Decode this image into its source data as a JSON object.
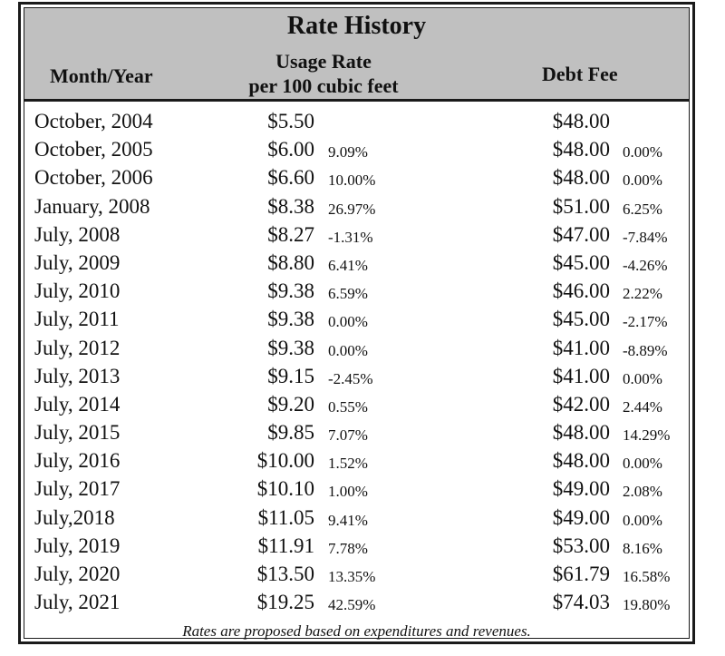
{
  "table": {
    "title": "Rate History",
    "headers": {
      "month_year": "Month/Year",
      "usage_rate_line1": "Usage Rate",
      "usage_rate_line2": "per 100 cubic feet",
      "debt_fee": "Debt Fee"
    },
    "rows": [
      {
        "month": "October, 2004",
        "usage": "$5.50",
        "usage_pct": "",
        "debt": "$48.00",
        "debt_pct": ""
      },
      {
        "month": "October, 2005",
        "usage": "$6.00",
        "usage_pct": "9.09%",
        "debt": "$48.00",
        "debt_pct": "0.00%"
      },
      {
        "month": "October, 2006",
        "usage": "$6.60",
        "usage_pct": "10.00%",
        "debt": "$48.00",
        "debt_pct": "0.00%"
      },
      {
        "month": "January, 2008",
        "usage": "$8.38",
        "usage_pct": "26.97%",
        "debt": "$51.00",
        "debt_pct": "6.25%"
      },
      {
        "month": "July, 2008",
        "usage": "$8.27",
        "usage_pct": "-1.31%",
        "debt": "$47.00",
        "debt_pct": "-7.84%"
      },
      {
        "month": "July, 2009",
        "usage": "$8.80",
        "usage_pct": "6.41%",
        "debt": "$45.00",
        "debt_pct": "-4.26%"
      },
      {
        "month": "July, 2010",
        "usage": "$9.38",
        "usage_pct": "6.59%",
        "debt": "$46.00",
        "debt_pct": "2.22%"
      },
      {
        "month": "July, 2011",
        "usage": "$9.38",
        "usage_pct": "0.00%",
        "debt": "$45.00",
        "debt_pct": "-2.17%"
      },
      {
        "month": "July, 2012",
        "usage": "$9.38",
        "usage_pct": "0.00%",
        "debt": "$41.00",
        "debt_pct": "-8.89%"
      },
      {
        "month": "July, 2013",
        "usage": "$9.15",
        "usage_pct": "-2.45%",
        "debt": "$41.00",
        "debt_pct": "0.00%"
      },
      {
        "month": "July, 2014",
        "usage": "$9.20",
        "usage_pct": "0.55%",
        "debt": "$42.00",
        "debt_pct": "2.44%"
      },
      {
        "month": "July, 2015",
        "usage": "$9.85",
        "usage_pct": "7.07%",
        "debt": "$48.00",
        "debt_pct": "14.29%"
      },
      {
        "month": "July, 2016",
        "usage": "$10.00",
        "usage_pct": "1.52%",
        "debt": "$48.00",
        "debt_pct": "0.00%"
      },
      {
        "month": "July, 2017",
        "usage": "$10.10",
        "usage_pct": "1.00%",
        "debt": "$49.00",
        "debt_pct": "2.08%"
      },
      {
        "month": "July,2018",
        "usage": "$11.05",
        "usage_pct": "9.41%",
        "debt": "$49.00",
        "debt_pct": "0.00%"
      },
      {
        "month": "July, 2019",
        "usage": "$11.91",
        "usage_pct": "7.78%",
        "debt": "$53.00",
        "debt_pct": "8.16%"
      },
      {
        "month": "July, 2020",
        "usage": "$13.50",
        "usage_pct": "13.35%",
        "debt": "$61.79",
        "debt_pct": "16.58%"
      },
      {
        "month": "July, 2021",
        "usage": "$19.25",
        "usage_pct": "42.59%",
        "debt": "$74.03",
        "debt_pct": "19.80%"
      }
    ],
    "footnote": "Rates are proposed based on expenditures and revenues."
  }
}
